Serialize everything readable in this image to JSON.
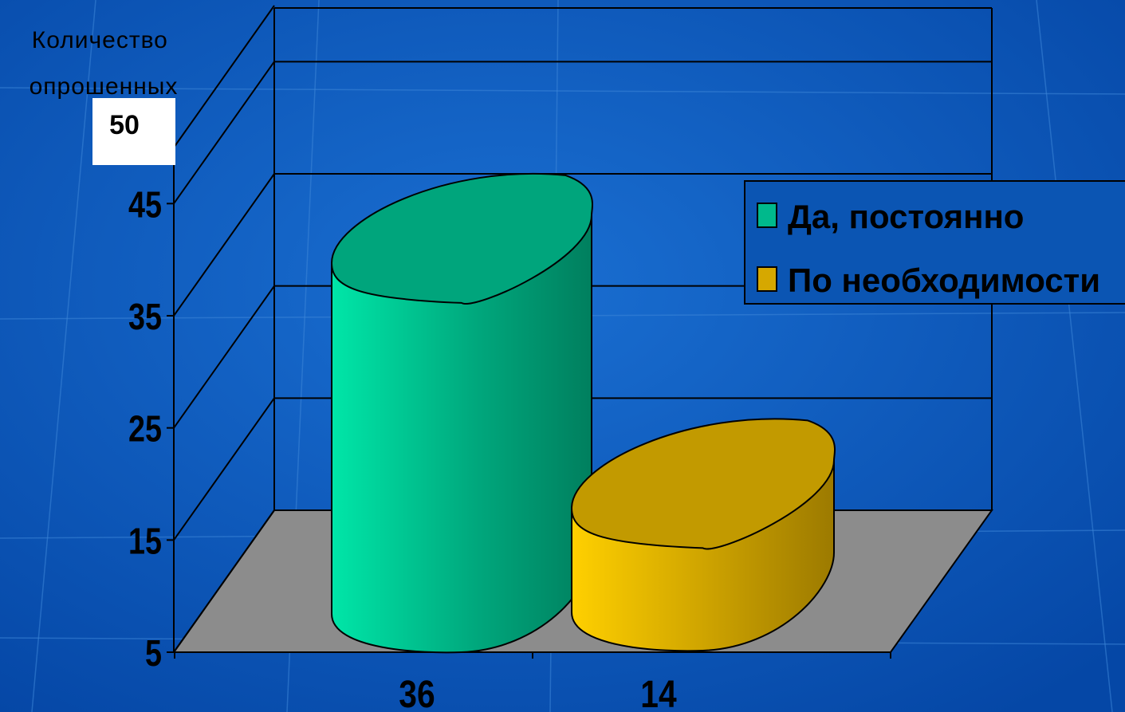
{
  "chart_data": {
    "type": "bar",
    "style": "3d-cylinder",
    "ylabel": "Количество опрошенных",
    "ytick_labels": [
      "5",
      "15",
      "25",
      "35",
      "45",
      "50"
    ],
    "categories": [
      "36",
      "14"
    ],
    "series": [
      {
        "name": "Да, постоянно",
        "color": "#00b98c",
        "values": [
          36,
          null
        ]
      },
      {
        "name": "По необходимости",
        "color": "#d6a800",
        "values": [
          null,
          14
        ]
      }
    ],
    "ylim": [
      5,
      50
    ],
    "grid": true,
    "legend": "right",
    "floor_color": "#8c8c8c"
  }
}
